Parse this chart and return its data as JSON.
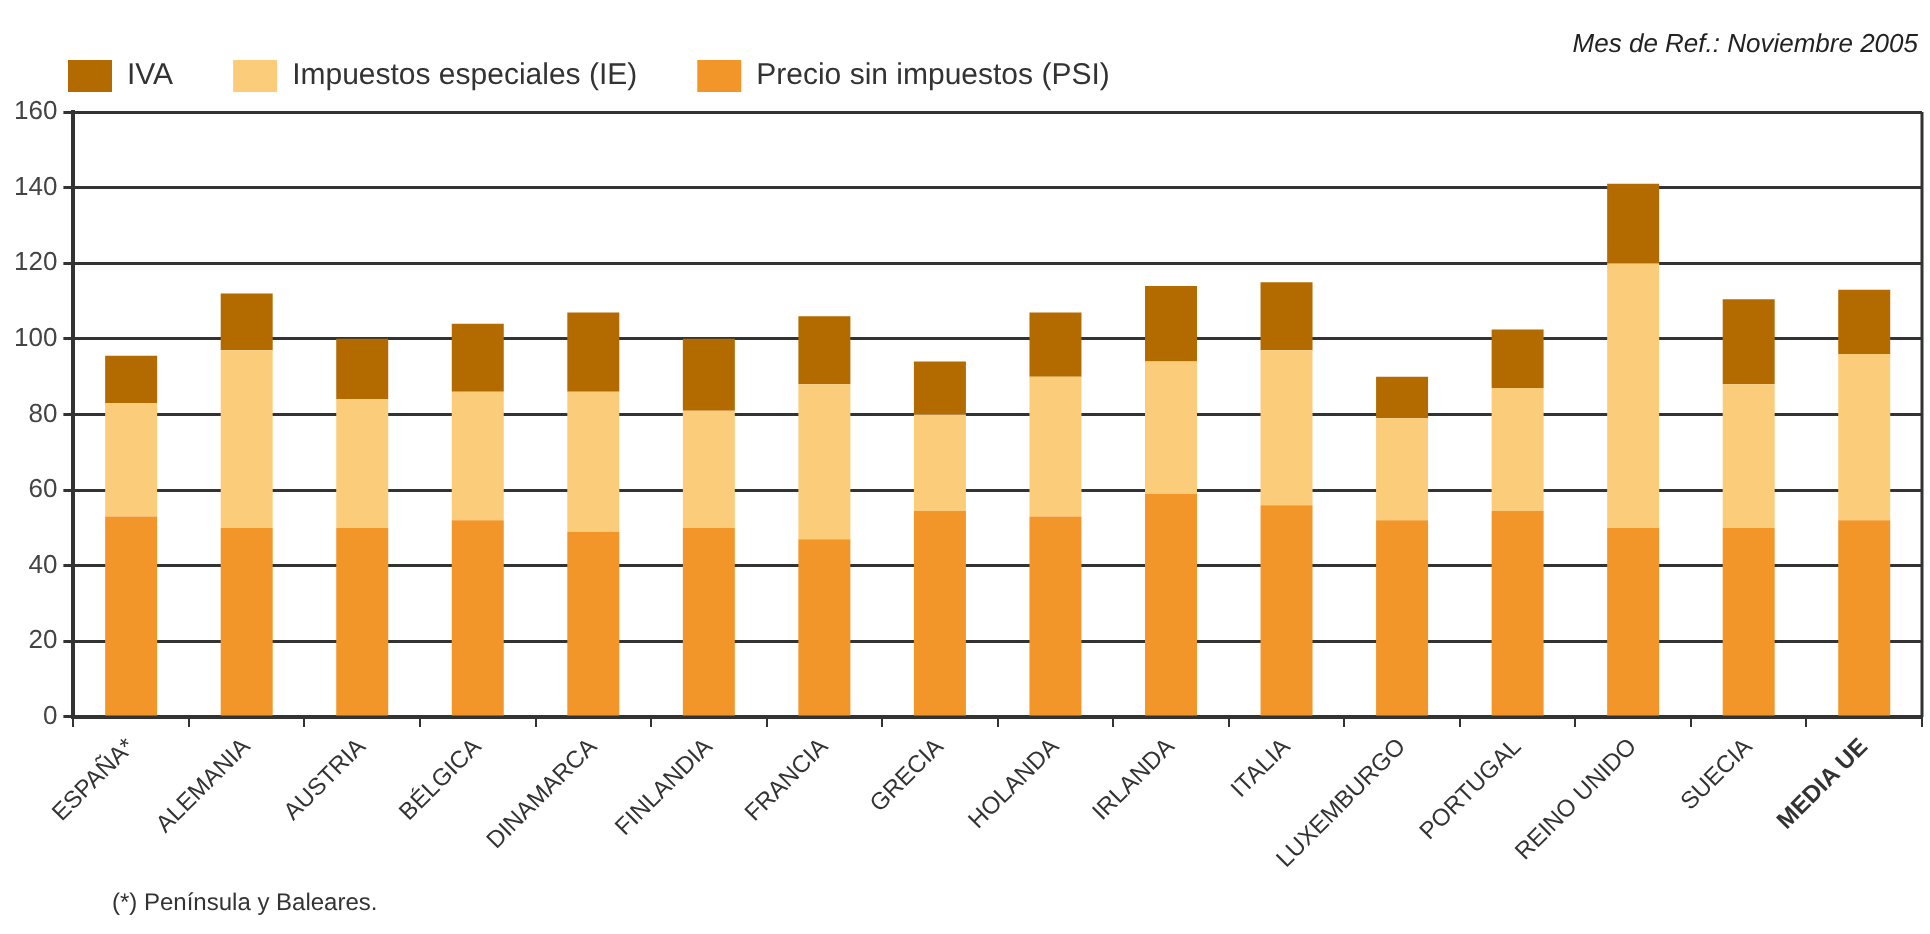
{
  "chart_data": {
    "type": "bar",
    "stacked": true,
    "categories": [
      "ESPAÑA*",
      "ALEMANIA",
      "AUSTRIA",
      "BÉLGICA",
      "DINAMARCA",
      "FINLANDIA",
      "FRANCIA",
      "GRECIA",
      "HOLANDA",
      "IRLANDA",
      "ITALIA",
      "LUXEMBURGO",
      "PORTUGAL",
      "REINO UNIDO",
      "SUECIA",
      "MEDIA UE"
    ],
    "series": [
      {
        "name": "Precio sin impuestos (PSI)",
        "color": "#f2962a",
        "values": [
          53,
          50,
          50,
          52,
          49,
          50,
          47,
          54.5,
          53,
          59,
          56,
          52,
          54.5,
          50,
          50,
          52
        ]
      },
      {
        "name": "Impuestos especiales (IE)",
        "color": "#fbcd7b",
        "values": [
          30,
          47,
          34,
          34,
          37,
          31,
          41,
          25.5,
          37,
          35,
          41,
          27,
          32.5,
          70,
          38,
          44
        ]
      },
      {
        "name": "IVA",
        "color": "#b36b00",
        "values": [
          12.5,
          15,
          16,
          18,
          21,
          19,
          18,
          14,
          17,
          20,
          18,
          11,
          15.5,
          21,
          22.5,
          17
        ]
      }
    ],
    "ylim": [
      0,
      160
    ],
    "yticks": [
      0,
      20,
      40,
      60,
      80,
      100,
      120,
      140,
      160
    ],
    "grid": "y",
    "legend": "top",
    "annotations": [
      "Mes de Ref.: Noviembre 2005",
      "(*) Península y Baleares."
    ]
  }
}
